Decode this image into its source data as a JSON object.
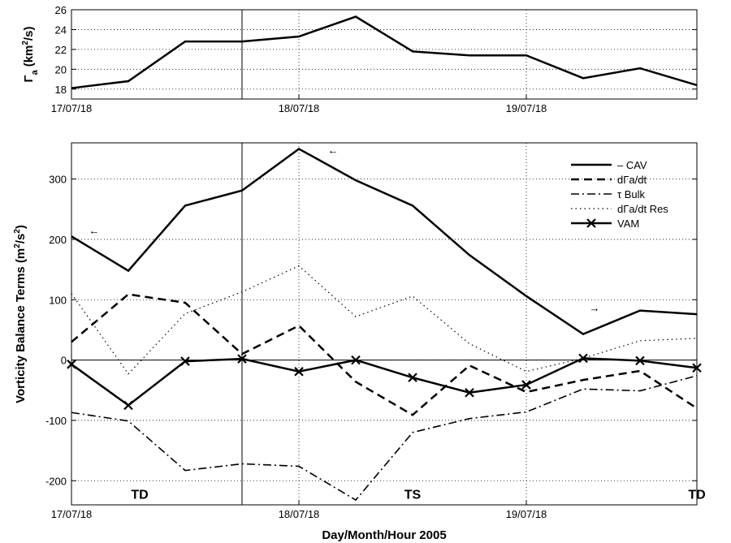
{
  "xlabel": "Day/Month/Hour 2005",
  "chart_data": [
    {
      "type": "line",
      "title": "",
      "ylabel_main": "Γ",
      "ylabel_sub": "a",
      "ylabel_unit_pre": "(km",
      "ylabel_unit_sup": "2",
      "ylabel_unit_post": "/s)",
      "xlim": [
        0,
        2.5
      ],
      "ylim": [
        17,
        26
      ],
      "yticks": [
        18,
        20,
        22,
        24,
        26
      ],
      "xticks": [
        {
          "x": 0,
          "label": "17/07/18"
        },
        {
          "x": 1,
          "label": "18/07/18"
        },
        {
          "x": 2,
          "label": "19/07/18"
        }
      ],
      "grid": true,
      "vline_x": 0.75,
      "series": [
        {
          "x": [
            0,
            0.25,
            0.5,
            0.75,
            1,
            1.25,
            1.5,
            1.75,
            2,
            2.25,
            2.5,
            2.75
          ],
          "values": [
            18.1,
            18.8,
            22.8,
            22.8,
            23.3,
            25.3,
            21.8,
            21.4,
            21.4,
            19.1,
            20.1,
            18.4
          ]
        }
      ]
    },
    {
      "type": "line",
      "title": "",
      "ylabel_pre": "Vorticity Balance Terms (m",
      "ylabel_sup": "2",
      "ylabel_mid": "/s",
      "ylabel_sup2": "2",
      "ylabel_post": ")",
      "xlim": [
        0,
        2.5
      ],
      "ylim": [
        -240,
        360
      ],
      "yticks": [
        -200,
        -100,
        0,
        100,
        200,
        300
      ],
      "xticks": [
        {
          "x": 0,
          "label": "17/07/18"
        },
        {
          "x": 1,
          "label": "18/07/18"
        },
        {
          "x": 2,
          "label": "19/07/18"
        }
      ],
      "grid": true,
      "zero_line": true,
      "vline_x": 0.75,
      "legend_position": "top-right",
      "series": [
        {
          "name": "– CAV",
          "style": "solid",
          "x": [
            0,
            0.25,
            0.5,
            0.75,
            1,
            1.25,
            1.5,
            1.75,
            2,
            2.25,
            2.5,
            2.75
          ],
          "values": [
            205,
            148,
            256,
            281,
            350,
            298,
            256,
            174,
            106,
            43,
            82,
            76
          ]
        },
        {
          "name": "dΓa/dt",
          "style": "dashed",
          "x": [
            0,
            0.25,
            0.5,
            0.75,
            1,
            1.25,
            1.5,
            1.75,
            2,
            2.25,
            2.5,
            2.75
          ],
          "values": [
            30,
            109,
            95,
            10,
            57,
            -36,
            -91,
            -9,
            -53,
            -33,
            -18,
            -80
          ]
        },
        {
          "name": "τ Bulk",
          "style": "dashdot",
          "x": [
            0,
            0.25,
            0.5,
            0.75,
            1,
            1.25,
            1.5,
            1.75,
            2,
            2.25,
            2.5,
            2.75
          ],
          "values": [
            -87,
            -101,
            -183,
            -172,
            -176,
            -232,
            -120,
            -97,
            -86,
            -48,
            -51,
            -26
          ]
        },
        {
          "name": "dΓa/dt Res",
          "style": "dotted",
          "x": [
            0,
            0.25,
            0.5,
            0.75,
            1,
            1.25,
            1.5,
            1.75,
            2,
            2.25,
            2.5,
            2.75
          ],
          "values": [
            110,
            -23,
            77,
            113,
            156,
            72,
            106,
            27,
            -19,
            3,
            32,
            36
          ]
        },
        {
          "name": "VAM",
          "style": "solid-x",
          "x": [
            0,
            0.25,
            0.5,
            0.75,
            1,
            1.25,
            1.5,
            1.75,
            2,
            2.25,
            2.5,
            2.75
          ],
          "values": [
            -7,
            -75,
            -2,
            2,
            -19,
            0,
            -29,
            -54,
            -41,
            3,
            -1,
            -13
          ]
        }
      ],
      "annotations": [
        {
          "text": "←",
          "x": 0.1,
          "y": 217
        },
        {
          "text": "←",
          "x": 1.15,
          "y": 350
        },
        {
          "text": "→",
          "x": 2.3,
          "y": 88
        },
        {
          "text": "TD",
          "x": 0.3,
          "y": -222
        },
        {
          "text": "TS",
          "x": 1.5,
          "y": -222
        },
        {
          "text": "TD",
          "x": 2.75,
          "y": -222
        }
      ]
    }
  ]
}
